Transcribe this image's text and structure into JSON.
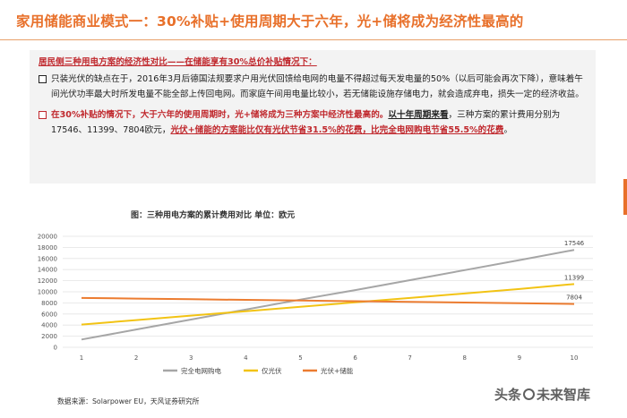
{
  "page": {
    "title": "家用储能商业模式一：30%补贴+使用周期大于六年，光+储将成为经济性最高的"
  },
  "text_box": {
    "heading": "居民侧三种用电方案的经济性对比——在储能享有30%总价补贴情况下：",
    "para1": "只装光伏的缺点在于，2016年3月后德国法规要求户用光伏回馈给电网的电量不得超过每天发电量的50%（以后可能会再次下降），意味着午间光伏功率最大时所发电量不能全部上传回电网。而家庭午间用电量比较小，若无储能设施存储电力，就会造成弃电，损失一定的经济收益。",
    "para2_red": "在30%补贴的情况下，大于六年的使用周期时，光+储将成为三种方案中经济性最高的。",
    "para2_bold": "以十年周期来看",
    "para2_plain": "，三种方案的累计费用分别为17546、11399、7804欧元，",
    "para2_red_u": "光伏+储能的方案能比仅有光伏节省31.5%的花费，比完全电网购电节省55.5%的花费",
    "para2_end": "。"
  },
  "chart_title": "图：三种用电方案的累计费用对比  单位：欧元",
  "source": "数据来源：Solarpower EU，天风证券研究所",
  "watermark": {
    "left": "头条",
    "right": "未来智库"
  },
  "colors": {
    "grid_series": "#a6a6a6",
    "pv_series": "#f2c314",
    "pv_storage_series": "#ec7c30",
    "accent": "#e8702a",
    "highlight": "#c0282d"
  },
  "chart_data": {
    "type": "line",
    "x": [
      1,
      2,
      3,
      4,
      5,
      6,
      7,
      8,
      9,
      10
    ],
    "ylim": [
      0,
      20000
    ],
    "yticks": [
      0,
      2000,
      4000,
      6000,
      8000,
      10000,
      12000,
      14000,
      16000,
      18000,
      20000
    ],
    "series": [
      {
        "name": "完全电网购电",
        "color": "#a6a6a6",
        "values": [
          1400,
          3200,
          5000,
          6800,
          8600,
          10300,
          12100,
          13900,
          15700,
          17546
        ]
      },
      {
        "name": "仅光伏",
        "color": "#f2c314",
        "values": [
          4100,
          4900,
          5700,
          6500,
          7300,
          8100,
          8900,
          9700,
          10500,
          11399
        ]
      },
      {
        "name": "光伏+储能",
        "color": "#ec7c30",
        "values": [
          8900,
          8780,
          8660,
          8540,
          8420,
          8300,
          8180,
          8060,
          7940,
          7804
        ]
      }
    ],
    "end_labels": [
      "17546",
      "11399",
      "7804"
    ]
  }
}
